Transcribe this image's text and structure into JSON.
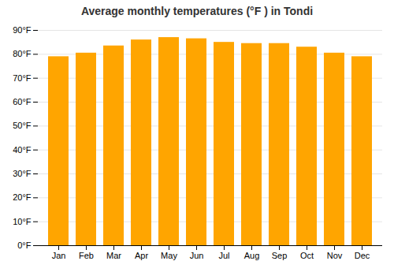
{
  "chart_data": {
    "type": "bar",
    "title": "Average monthly temperatures (°F ) in Tondi",
    "categories": [
      "Jan",
      "Feb",
      "Mar",
      "Apr",
      "May",
      "Jun",
      "Jul",
      "Aug",
      "Sep",
      "Oct",
      "Nov",
      "Dec"
    ],
    "values": [
      79,
      80.5,
      83.5,
      86,
      87,
      86.5,
      85,
      84.5,
      84.5,
      83,
      80.5,
      79
    ],
    "color": "#FFA500",
    "ylim": [
      0,
      90
    ],
    "yticks": [
      {
        "value": 0,
        "label": "0°F"
      },
      {
        "value": 10,
        "label": "10°F"
      },
      {
        "value": 20,
        "label": "20°F"
      },
      {
        "value": 30,
        "label": "30°F"
      },
      {
        "value": 40,
        "label": "40°F"
      },
      {
        "value": 50,
        "label": "50°F"
      },
      {
        "value": 60,
        "label": "60°F"
      },
      {
        "value": 70,
        "label": "70°F"
      },
      {
        "value": 80,
        "label": "80°F"
      },
      {
        "value": 90,
        "label": "90°F"
      }
    ],
    "grid": true
  }
}
